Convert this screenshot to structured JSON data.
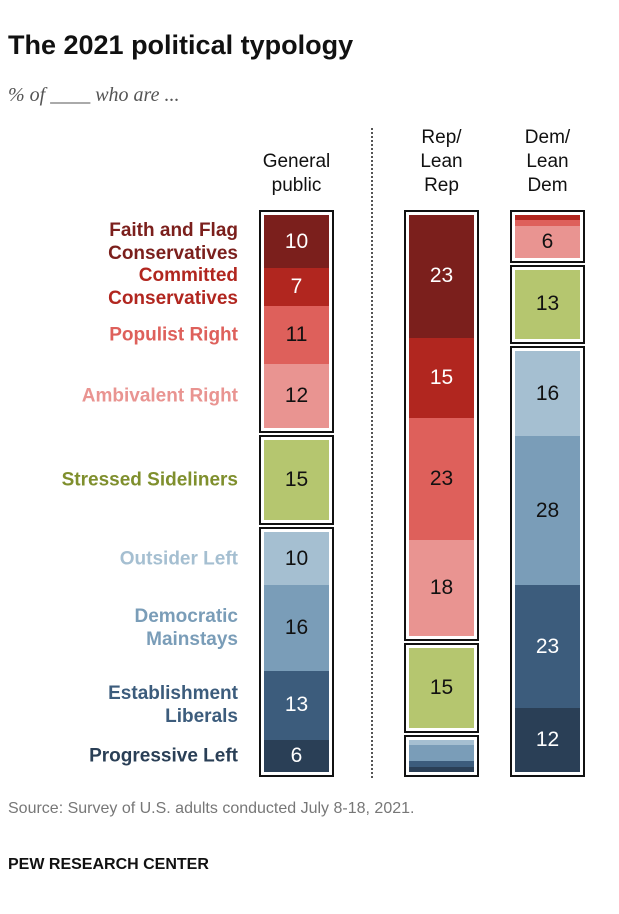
{
  "title": "The 2021 political typology",
  "subtitle": "% of ____ who are ...",
  "source": "Source: Survey of U.S. adults conducted July 8-18, 2021.",
  "brand": "PEW RESEARCH CENTER",
  "chart_data": {
    "type": "bar",
    "stacked": true,
    "categories": [
      "Faith and Flag\nConservatives",
      "Committed\nConservatives",
      "Populist Right",
      "Ambivalent Right",
      "Stressed Sideliners",
      "Outsider Left",
      "Democratic\nMainstays",
      "Establishment\nLiberals",
      "Progressive Left"
    ],
    "colors": [
      "#7b1f1c",
      "#b1261f",
      "#de605b",
      "#e99491",
      "#b5c66f",
      "#a5bfd1",
      "#7a9db8",
      "#3c5c7c",
      "#2a3f56"
    ],
    "label_colors": [
      "#7b1f1c",
      "#b1261f",
      "#de605b",
      "#e99491",
      "#7f8f2d",
      "#a5bfd1",
      "#7a9db8",
      "#3c5c7c",
      "#2a3f56"
    ],
    "text_colors": [
      "#fff",
      "#fff",
      "#111",
      "#111",
      "#111",
      "#111",
      "#111",
      "#fff",
      "#fff"
    ],
    "groups": [
      [
        0,
        1,
        2,
        3
      ],
      [
        4
      ],
      [
        5,
        6,
        7,
        8
      ]
    ],
    "series": [
      {
        "name": "General\npublic",
        "values": [
          10,
          7,
          11,
          12,
          15,
          10,
          16,
          13,
          6
        ],
        "labels": [
          "10",
          "7",
          "11",
          "12",
          "15",
          "10",
          "16",
          "13",
          "6"
        ]
      },
      {
        "name": "Rep/\nLean\nRep",
        "values": [
          23,
          15,
          23,
          18,
          15,
          1,
          3,
          1,
          1
        ],
        "labels": [
          "23",
          "15",
          "23",
          "18",
          "15",
          "",
          "",
          "",
          ""
        ]
      },
      {
        "name": "Dem/\nLean\nDem",
        "values": [
          0,
          1,
          1,
          6,
          13,
          16,
          28,
          23,
          12
        ],
        "labels": [
          "",
          "",
          "",
          "6",
          "13",
          "16",
          "28",
          "23",
          "12"
        ]
      }
    ]
  }
}
